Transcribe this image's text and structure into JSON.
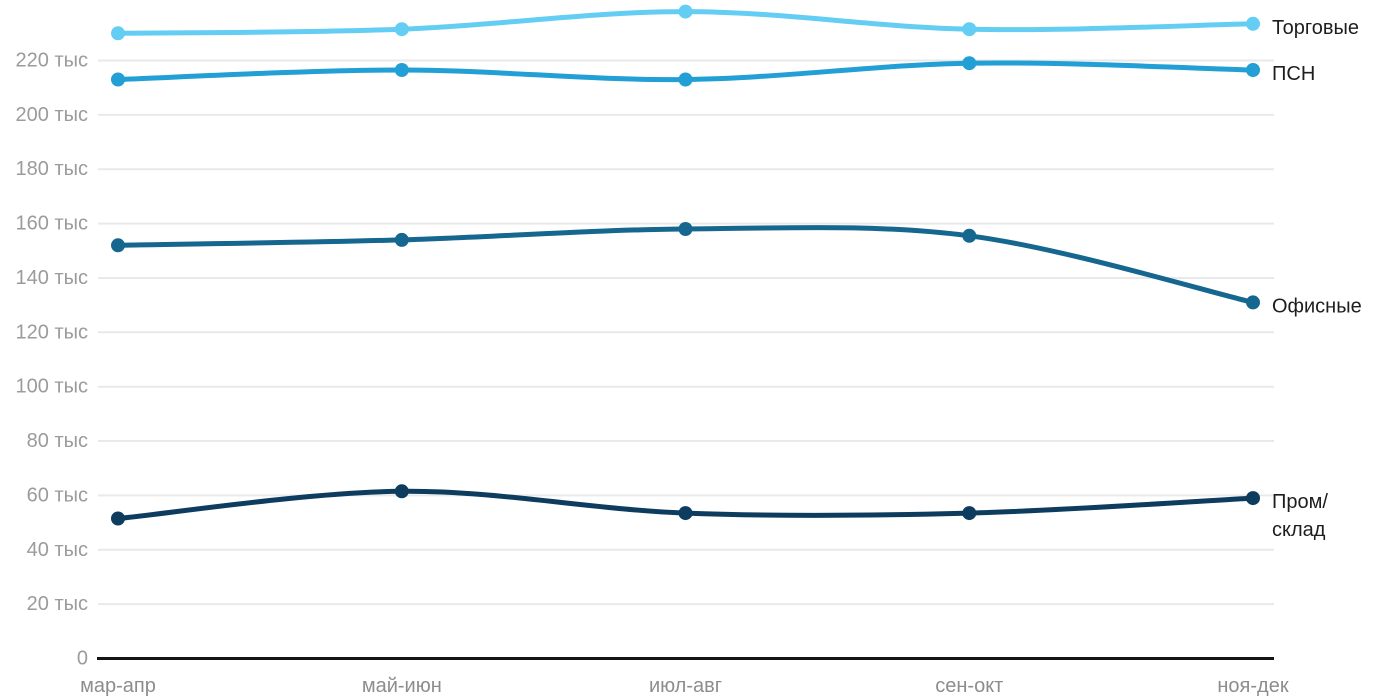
{
  "page": {
    "background": "#ffffff"
  },
  "colors": {
    "grid_line": "#e9e9e9",
    "axis_line": "#151515",
    "y_tick_text": "#9b9b9b",
    "x_tick_text": "#8d8d8d",
    "series_label_text": "#1e1e1e"
  },
  "chart_data": {
    "type": "line",
    "title": "",
    "unit_suffix": "тыс",
    "grid": true,
    "legend_position": "right-of-line-end",
    "categories": [
      "мар-апр",
      "май-июн",
      "июл-авг",
      "сен-окт",
      "ноя-дек"
    ],
    "series": [
      {
        "name": "Торговые",
        "label_lines": [
          "Торговые"
        ],
        "color": "#63cdf3",
        "values": [
          230,
          231.5,
          238,
          231.5,
          233.5
        ]
      },
      {
        "name": "ПСН",
        "label_lines": [
          "ПСН"
        ],
        "color": "#229fd4",
        "values": [
          213,
          216.5,
          213,
          219,
          216.5
        ]
      },
      {
        "name": "Офисные",
        "label_lines": [
          "Офисные"
        ],
        "color": "#15678f",
        "values": [
          152,
          154,
          158,
          155.5,
          131
        ]
      },
      {
        "name": "Пром/склад",
        "label_lines": [
          "Пром/",
          "склад"
        ],
        "color": "#0d3c5f",
        "values": [
          51.5,
          61.5,
          53.5,
          53.5,
          59
        ]
      }
    ],
    "y_ticks": [
      {
        "value": 220,
        "label": "220 тыс"
      },
      {
        "value": 200,
        "label": "200 тыс"
      },
      {
        "value": 180,
        "label": "180 тыс"
      },
      {
        "value": 160,
        "label": "160 тыс"
      },
      {
        "value": 140,
        "label": "140 тыс"
      },
      {
        "value": 120,
        "label": "120 тыс"
      },
      {
        "value": 100,
        "label": "100 тыс"
      },
      {
        "value": 80,
        "label": "80 тыс"
      },
      {
        "value": 60,
        "label": "60 тыс"
      },
      {
        "value": 40,
        "label": "40 тыс"
      },
      {
        "value": 20,
        "label": "20 тыс"
      },
      {
        "value": 0,
        "label": "0"
      }
    ],
    "ylim": [
      0,
      242
    ],
    "xlabel": "",
    "ylabel": ""
  }
}
